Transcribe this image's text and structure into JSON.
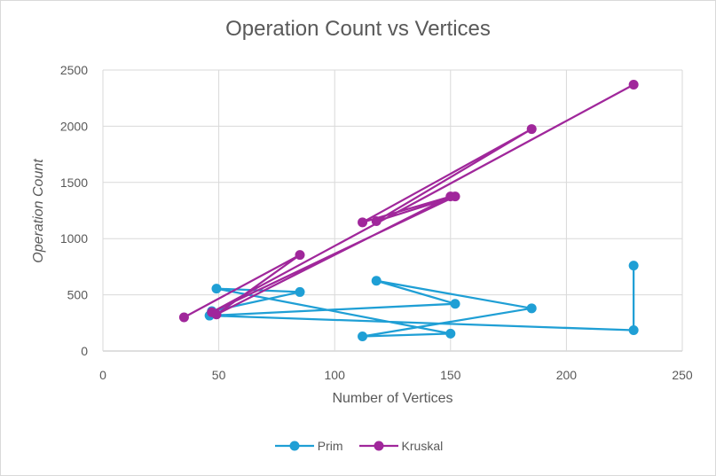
{
  "chart_data": {
    "type": "scatter",
    "title": "Operation Count vs Vertices",
    "xlabel": "Number of Vertices",
    "ylabel": "Operation Count",
    "xlim": [
      0,
      250
    ],
    "ylim": [
      0,
      2500
    ],
    "x_ticks": [
      0,
      50,
      100,
      150,
      200,
      250
    ],
    "y_ticks": [
      0,
      500,
      1000,
      1500,
      2000,
      2500
    ],
    "grid": true,
    "legend_position": "bottom",
    "series": [
      {
        "name": "Prim",
        "color": "#1f9fd5",
        "points": [
          [
            229,
            760
          ],
          [
            229,
            185
          ],
          [
            46,
            315
          ],
          [
            152,
            420
          ],
          [
            118,
            625
          ],
          [
            185,
            380
          ],
          [
            112,
            130
          ],
          [
            150,
            155
          ],
          [
            49,
            555
          ],
          [
            85,
            525
          ],
          [
            47,
            355
          ]
        ]
      },
      {
        "name": "Kruskal",
        "color": "#a0279b",
        "points": [
          [
            229,
            2370
          ],
          [
            47,
            345
          ],
          [
            152,
            1375
          ],
          [
            118,
            1155
          ],
          [
            185,
            1975
          ],
          [
            112,
            1145
          ],
          [
            150,
            1375
          ],
          [
            49,
            325
          ],
          [
            85,
            855
          ],
          [
            35,
            300
          ]
        ]
      }
    ]
  }
}
